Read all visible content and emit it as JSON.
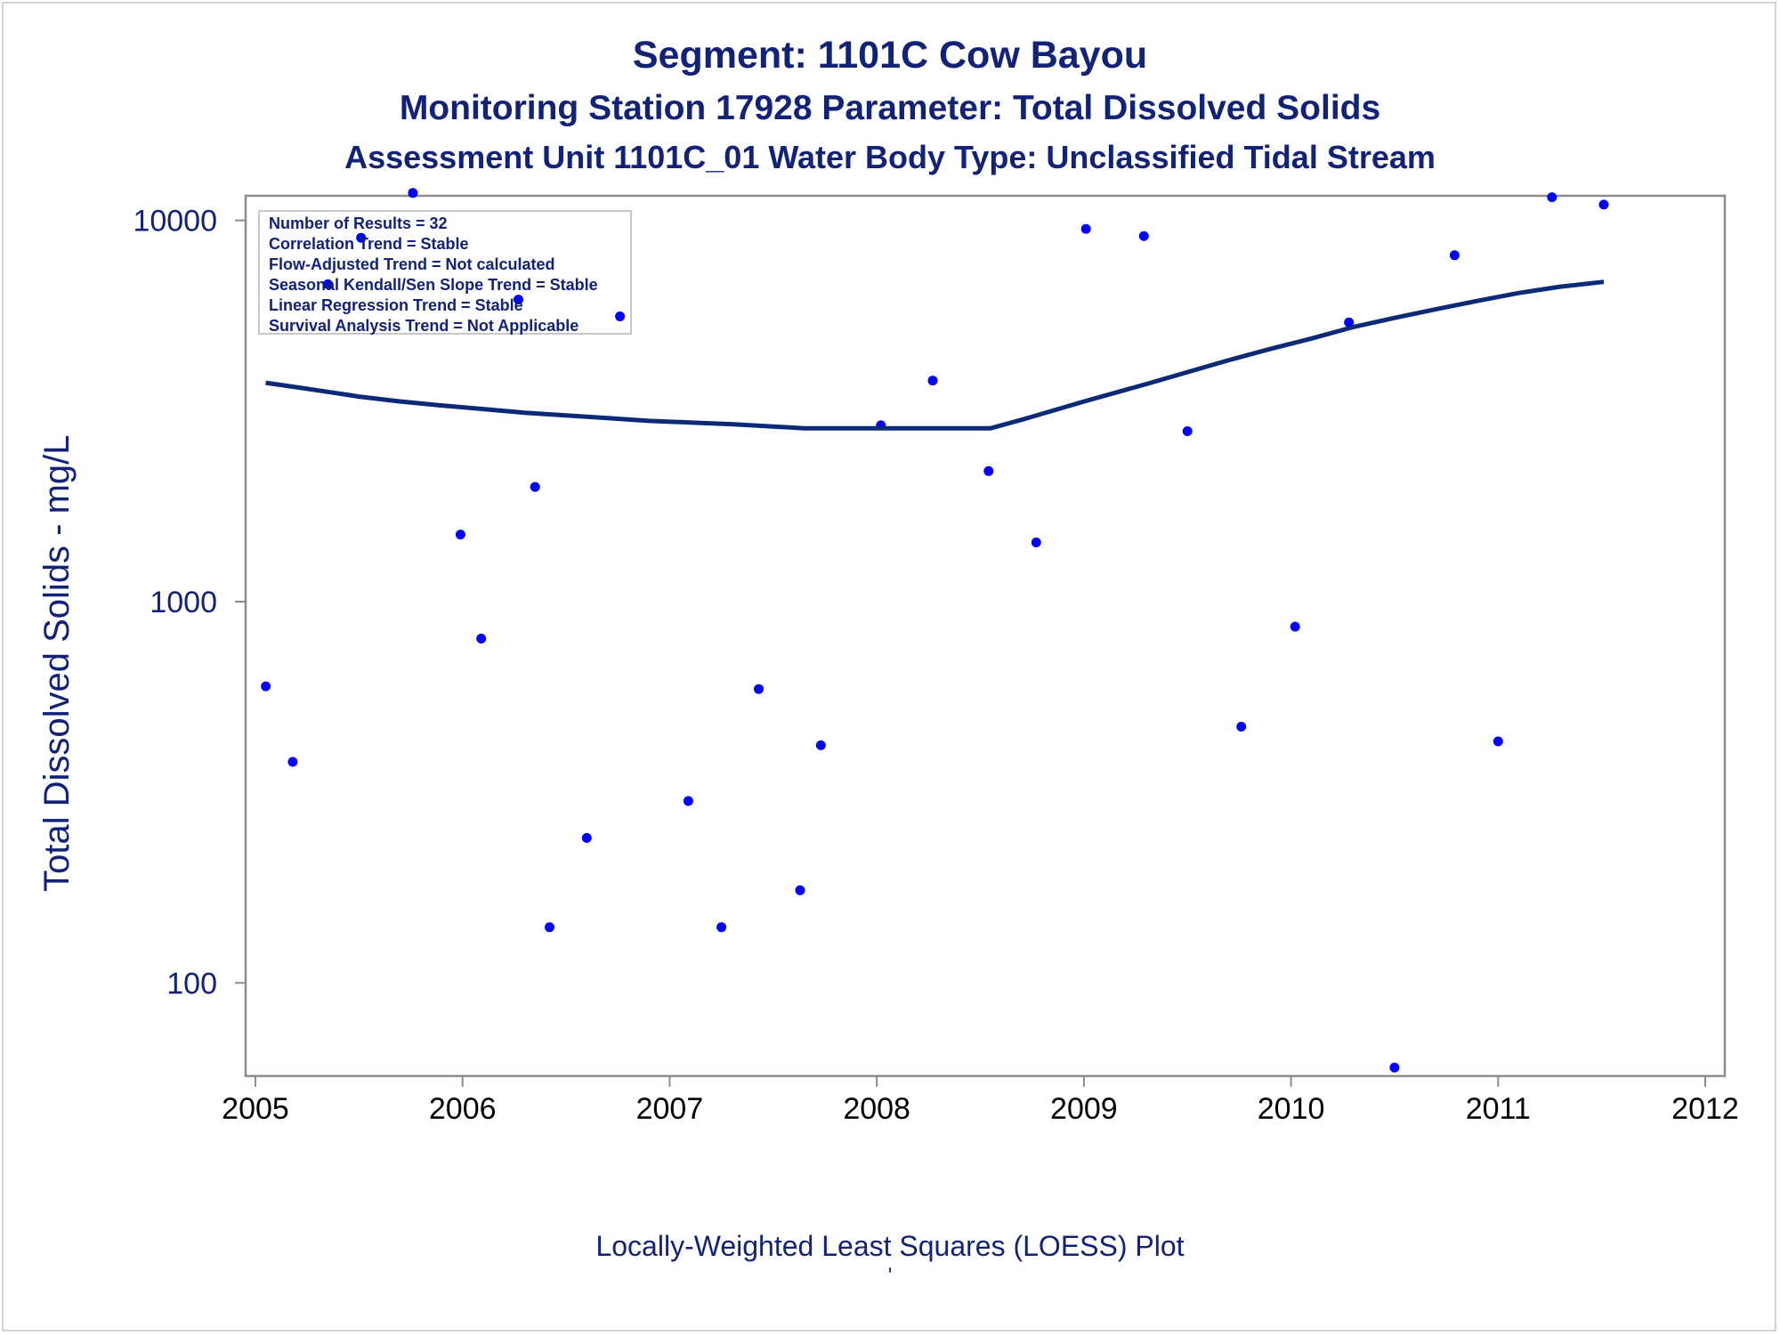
{
  "title": "Segment: 1101C  Cow Bayou",
  "subtitle1": "Monitoring Station 17928 Parameter: Total Dissolved Solids",
  "subtitle2": "Assessment Unit 1101C_01   Water Body Type: Unclassified Tidal Stream",
  "ylabel": "Total Dissolved Solids - mg/L",
  "caption": "Locally-Weighted Least Squares (LOESS) Plot",
  "caption_mark": "'",
  "stats": [
    "Number of Results = 32",
    "Correlation Trend = Stable",
    "Flow-Adjusted Trend = Not calculated",
    "Seasonal Kendall/Sen Slope Trend = Stable",
    "Linear Regression Trend = Stable",
    "Survival Analysis Trend = Not Applicable"
  ],
  "colors": {
    "text": "#112277",
    "points": "#0000ff",
    "line": "#0a2a78",
    "axis": "#8c8c8c"
  },
  "chart_data": {
    "type": "scatter",
    "title": "Segment: 1101C  Cow Bayou",
    "ylabel": "Total Dissolved Solids - mg/L",
    "y_scale": "log",
    "xlim": [
      2005,
      2012
    ],
    "ylim": [
      57,
      11600
    ],
    "x_ticks": [
      "2005",
      "2006",
      "2007",
      "2008",
      "2009",
      "2010",
      "2011",
      "2012"
    ],
    "y_ticks": [
      "100",
      "1000",
      "10000"
    ],
    "grid": false,
    "series": [
      {
        "marker": "dot",
        "points": [
          [
            2005.05,
            600
          ],
          [
            2005.18,
            380
          ],
          [
            2005.35,
            6800
          ],
          [
            2005.51,
            9000
          ],
          [
            2005.76,
            11800
          ],
          [
            2005.99,
            1500
          ],
          [
            2006.09,
            800
          ],
          [
            2006.27,
            6200
          ],
          [
            2006.35,
            2000
          ],
          [
            2006.42,
            140
          ],
          [
            2006.6,
            240
          ],
          [
            2006.76,
            5600
          ],
          [
            2007.09,
            300
          ],
          [
            2007.25,
            140
          ],
          [
            2007.43,
            590
          ],
          [
            2007.63,
            175
          ],
          [
            2007.73,
            420
          ],
          [
            2008.02,
            2900
          ],
          [
            2008.27,
            3800
          ],
          [
            2008.54,
            2200
          ],
          [
            2008.77,
            1430
          ],
          [
            2009.01,
            9500
          ],
          [
            2009.29,
            9100
          ],
          [
            2009.5,
            2800
          ],
          [
            2009.76,
            470
          ],
          [
            2010.02,
            860
          ],
          [
            2010.28,
            5400
          ],
          [
            2010.5,
            60
          ],
          [
            2010.79,
            8100
          ],
          [
            2011.0,
            430
          ],
          [
            2011.26,
            11500
          ],
          [
            2011.51,
            11000
          ]
        ]
      },
      {
        "name": "LOESS",
        "marker": "line",
        "points": [
          [
            2005.05,
            3750
          ],
          [
            2005.2,
            3650
          ],
          [
            2005.35,
            3550
          ],
          [
            2005.5,
            3450
          ],
          [
            2005.7,
            3350
          ],
          [
            2005.9,
            3270
          ],
          [
            2006.1,
            3200
          ],
          [
            2006.3,
            3130
          ],
          [
            2006.5,
            3080
          ],
          [
            2006.7,
            3030
          ],
          [
            2006.9,
            2980
          ],
          [
            2007.1,
            2950
          ],
          [
            2007.3,
            2920
          ],
          [
            2007.5,
            2880
          ],
          [
            2007.65,
            2850
          ],
          [
            2008.0,
            2850
          ],
          [
            2008.3,
            2850
          ],
          [
            2008.55,
            2850
          ],
          [
            2008.7,
            3000
          ],
          [
            2009.0,
            3350
          ],
          [
            2009.3,
            3720
          ],
          [
            2009.5,
            4000
          ],
          [
            2009.7,
            4300
          ],
          [
            2009.9,
            4600
          ],
          [
            2010.1,
            4900
          ],
          [
            2010.3,
            5250
          ],
          [
            2010.5,
            5550
          ],
          [
            2010.7,
            5850
          ],
          [
            2010.9,
            6150
          ],
          [
            2011.1,
            6450
          ],
          [
            2011.3,
            6700
          ],
          [
            2011.51,
            6900
          ]
        ]
      }
    ]
  }
}
